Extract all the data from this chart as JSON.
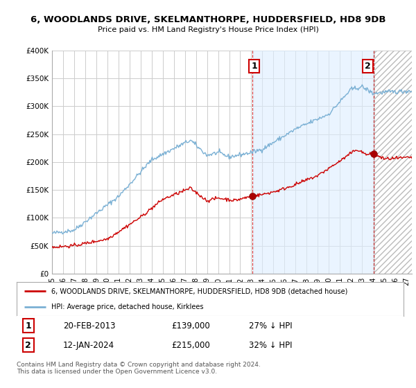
{
  "title": "6, WOODLANDS DRIVE, SKELMANTHORPE, HUDDERSFIELD, HD8 9DB",
  "subtitle": "Price paid vs. HM Land Registry's House Price Index (HPI)",
  "ylabel_ticks": [
    "£0",
    "£50K",
    "£100K",
    "£150K",
    "£200K",
    "£250K",
    "£300K",
    "£350K",
    "£400K"
  ],
  "ylabel_values": [
    0,
    50000,
    100000,
    150000,
    200000,
    250000,
    300000,
    350000,
    400000
  ],
  "ylim": [
    0,
    400000
  ],
  "xlim_start": 1995.0,
  "xlim_end": 2027.5,
  "grid_color": "#cccccc",
  "background_color": "#ffffff",
  "plot_background": "#ffffff",
  "red_line_color": "#cc0000",
  "blue_line_color": "#7ab0d4",
  "shade_blue_color": "#ddeeff",
  "marker1_x": 2013.12,
  "marker1_y": 139000,
  "marker2_x": 2024.04,
  "marker2_y": 215000,
  "annotation1_label": "1",
  "annotation2_label": "2",
  "legend_red_label": "6, WOODLANDS DRIVE, SKELMANTHORPE, HUDDERSFIELD, HD8 9DB (detached house)",
  "legend_blue_label": "HPI: Average price, detached house, Kirklees",
  "table_row1": [
    "1",
    "20-FEB-2013",
    "£139,000",
    "27% ↓ HPI"
  ],
  "table_row2": [
    "2",
    "12-JAN-2024",
    "£215,000",
    "32% ↓ HPI"
  ],
  "footnote": "Contains HM Land Registry data © Crown copyright and database right 2024.\nThis data is licensed under the Open Government Licence v3.0."
}
